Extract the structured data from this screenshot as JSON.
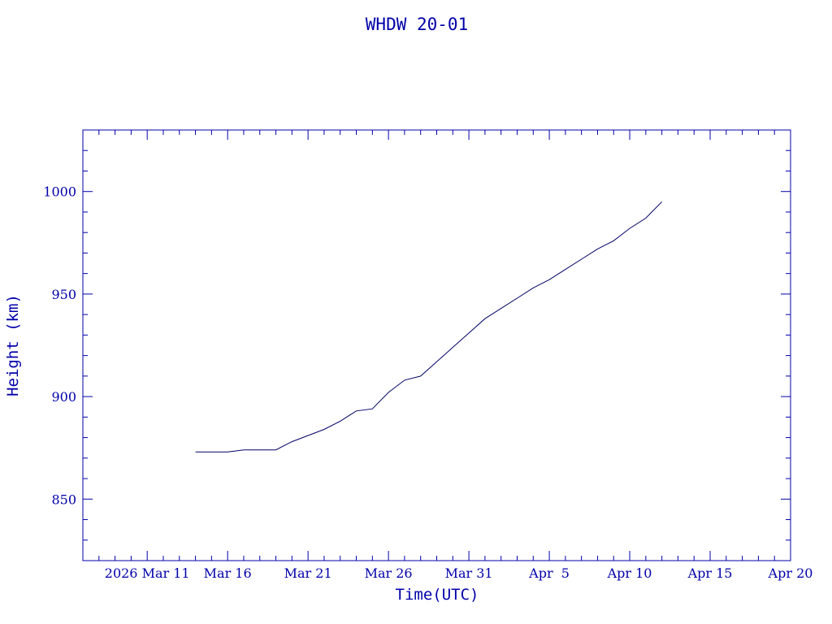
{
  "chart_data": {
    "type": "line",
    "title": "WHDW 20-01",
    "xlabel": "Time(UTC)",
    "ylabel": "Height (km)",
    "xlim": [
      "2026-03-07",
      "2026-04-20"
    ],
    "ylim": [
      820,
      1030
    ],
    "x_tick_labels": [
      {
        "date": "2026-03-11",
        "label": "2026 Mar 11"
      },
      {
        "date": "2026-03-16",
        "label": "Mar 16"
      },
      {
        "date": "2026-03-21",
        "label": "Mar 21"
      },
      {
        "date": "2026-03-26",
        "label": "Mar 26"
      },
      {
        "date": "2026-03-31",
        "label": "Mar 31"
      },
      {
        "date": "2026-04-05",
        "label": "Apr  5"
      },
      {
        "date": "2026-04-10",
        "label": "Apr 10"
      },
      {
        "date": "2026-04-15",
        "label": "Apr 15"
      },
      {
        "date": "2026-04-20",
        "label": "Apr 20"
      }
    ],
    "y_ticks": [
      850,
      900,
      950,
      1000
    ],
    "y_tick_labels": [
      "850",
      "900",
      "950",
      "1000"
    ],
    "grid": false,
    "colors": {
      "line": "#000066",
      "axis": "#0000aa",
      "text": "#0000aa"
    },
    "series": [
      {
        "x": [
          "2026-03-14",
          "2026-03-16",
          "2026-03-17",
          "2026-03-19",
          "2026-03-20",
          "2026-03-22",
          "2026-03-23",
          "2026-03-24",
          "2026-03-25",
          "2026-03-26",
          "2026-03-27",
          "2026-03-28",
          "2026-03-29",
          "2026-03-30",
          "2026-03-31",
          "2026-04-01",
          "2026-04-02",
          "2026-04-03",
          "2026-04-04",
          "2026-04-05",
          "2026-04-06",
          "2026-04-07",
          "2026-04-08",
          "2026-04-09",
          "2026-04-10",
          "2026-04-11",
          "2026-04-12"
        ],
        "values": [
          873,
          873,
          874,
          874,
          878,
          884,
          888,
          893,
          894,
          902,
          908,
          910,
          917,
          924,
          931,
          938,
          943,
          948,
          953,
          957,
          962,
          967,
          972,
          976,
          982,
          987,
          995
        ]
      }
    ]
  }
}
